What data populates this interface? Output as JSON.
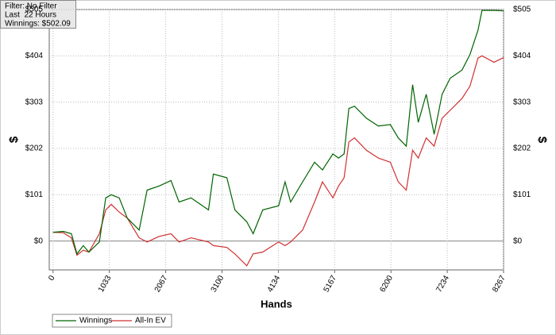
{
  "chart_data": {
    "type": "line",
    "info": [
      "Filter: No Filter",
      "Last  22 Hours",
      "Winnings: $502.09"
    ],
    "xlabel": "Hands",
    "ylabel": "$",
    "x": [
      0,
      190,
      336,
      439,
      556,
      658,
      849,
      966,
      1068,
      1214,
      1361,
      1580,
      1726,
      1946,
      2165,
      2312,
      2531,
      2853,
      2941,
      3189,
      3336,
      3555,
      3672,
      3848,
      4140,
      4257,
      4359,
      4579,
      4798,
      4944,
      5135,
      5238,
      5340,
      5428,
      5531,
      5750,
      5969,
      6189,
      6335,
      6481,
      6598,
      6701,
      6847,
      6993,
      7139,
      7286,
      7505,
      7651,
      7797,
      7871,
      8090,
      8267
    ],
    "series": [
      {
        "name": "Winnings",
        "color": "#006400",
        "values": [
          19,
          21,
          16,
          -28,
          -10,
          -24,
          -2,
          94,
          101,
          94,
          50,
          24,
          111,
          120,
          132,
          85,
          94,
          68,
          146,
          138,
          68,
          42,
          16,
          68,
          77,
          129,
          85,
          129,
          172,
          155,
          190,
          181,
          190,
          289,
          294,
          268,
          251,
          254,
          225,
          207,
          341,
          259,
          320,
          233,
          320,
          355,
          373,
          407,
          460,
          503,
          503,
          502
        ]
      },
      {
        "name": "All-In EV",
        "color": "#d03030",
        "values": [
          19,
          18,
          7,
          -31,
          -20,
          -24,
          16,
          68,
          80,
          63,
          50,
          7,
          -2,
          10,
          16,
          -2,
          7,
          -2,
          -10,
          -14,
          -28,
          -54,
          -28,
          -24,
          -2,
          -10,
          -2,
          24,
          85,
          129,
          94,
          120,
          138,
          216,
          225,
          198,
          181,
          172,
          129,
          111,
          198,
          181,
          225,
          207,
          268,
          285,
          311,
          338,
          399,
          404,
          390,
          400
        ]
      }
    ],
    "xlim": [
      -70,
      8267
    ],
    "xticks": [
      0,
      1033,
      2067,
      3100,
      4134,
      5167,
      6200,
      7234,
      8267
    ],
    "ylim": [
      -63,
      505
    ],
    "yticks": [
      {
        "value": 0,
        "label": "$0"
      },
      {
        "value": 101,
        "label": "$101"
      },
      {
        "value": 202,
        "label": "$202"
      },
      {
        "value": 303,
        "label": "$303"
      },
      {
        "value": 404,
        "label": "$404"
      },
      {
        "value": 505,
        "label": "$505"
      }
    ],
    "grid": true
  }
}
